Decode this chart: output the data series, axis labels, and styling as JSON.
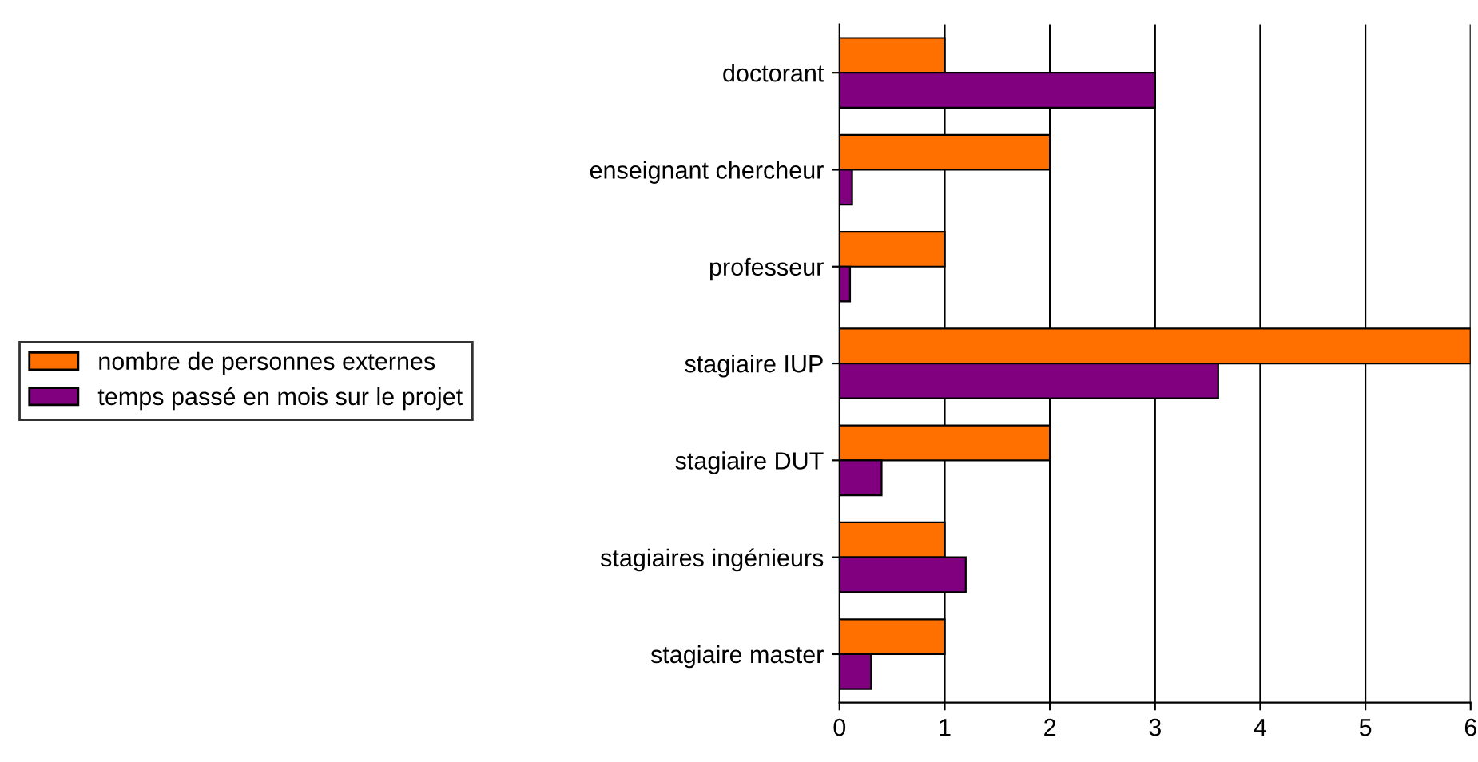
{
  "chart_data": {
    "type": "bar",
    "orientation": "horizontal",
    "categories": [
      "doctorant",
      "enseignant chercheur",
      "professeur",
      "stagiaire IUP",
      "stagiaire DUT",
      "stagiaires ingénieurs",
      "stagiaire master"
    ],
    "series": [
      {
        "name": "nombre de personnes externes",
        "color": "#ff7000",
        "values": [
          1,
          2,
          1,
          6,
          2,
          1,
          1
        ]
      },
      {
        "name": "temps passé en mois sur le projet",
        "color": "#800080",
        "values": [
          3,
          0.12,
          0.1,
          3.6,
          0.4,
          1.2,
          0.3
        ]
      }
    ],
    "xlim": [
      0,
      6
    ],
    "xticks": [
      0,
      1,
      2,
      3,
      4,
      5,
      6
    ],
    "grid": "x",
    "legend": "left"
  }
}
